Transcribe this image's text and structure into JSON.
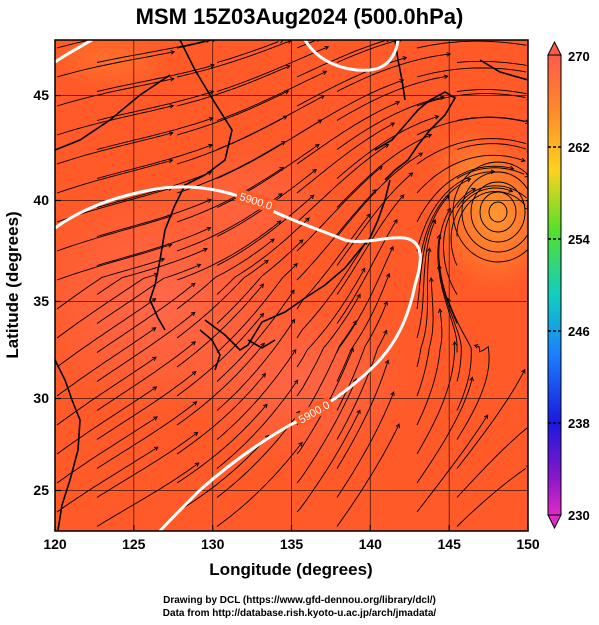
{
  "title": "MSM 15Z03Aug2024 (500.0hPa)",
  "xlabel": "Longitude (degrees)",
  "ylabel": "Latitude  (degrees)",
  "x_ticks": [
    "120",
    "125",
    "130",
    "135",
    "140",
    "145",
    "150"
  ],
  "y_ticks": [
    "25",
    "30",
    "35",
    "40",
    "45"
  ],
  "colorbar": {
    "ticks": [
      "270",
      "262",
      "254",
      "246",
      "238",
      "230"
    ],
    "range": [
      230,
      270
    ]
  },
  "contours": [
    {
      "label": "5900.0"
    },
    {
      "label": "5900.0"
    }
  ],
  "credits": [
    "Drawing by DCL (https://www.gfd-dennou.org/library/dcl/)",
    "Data from http://database.rish.kyoto-u.ac.jp/arch/jmadata/"
  ],
  "chart_data": {
    "type": "heatmap",
    "title": "MSM 15Z03Aug2024 (500.0hPa)",
    "xlabel": "Longitude (degrees)",
    "ylabel": "Latitude  (degrees)",
    "xlim": [
      120,
      150
    ],
    "ylim": [
      22.4,
      47.6
    ],
    "x_ticks": [
      120,
      125,
      130,
      135,
      140,
      145,
      150
    ],
    "y_ticks": [
      25,
      30,
      35,
      40,
      45
    ],
    "colorbar_range": [
      230,
      270
    ],
    "colorbar_ticks": [
      270,
      262,
      254,
      246,
      238,
      230
    ],
    "contour_labels": [
      "5900.0",
      "5900.0"
    ]
  }
}
